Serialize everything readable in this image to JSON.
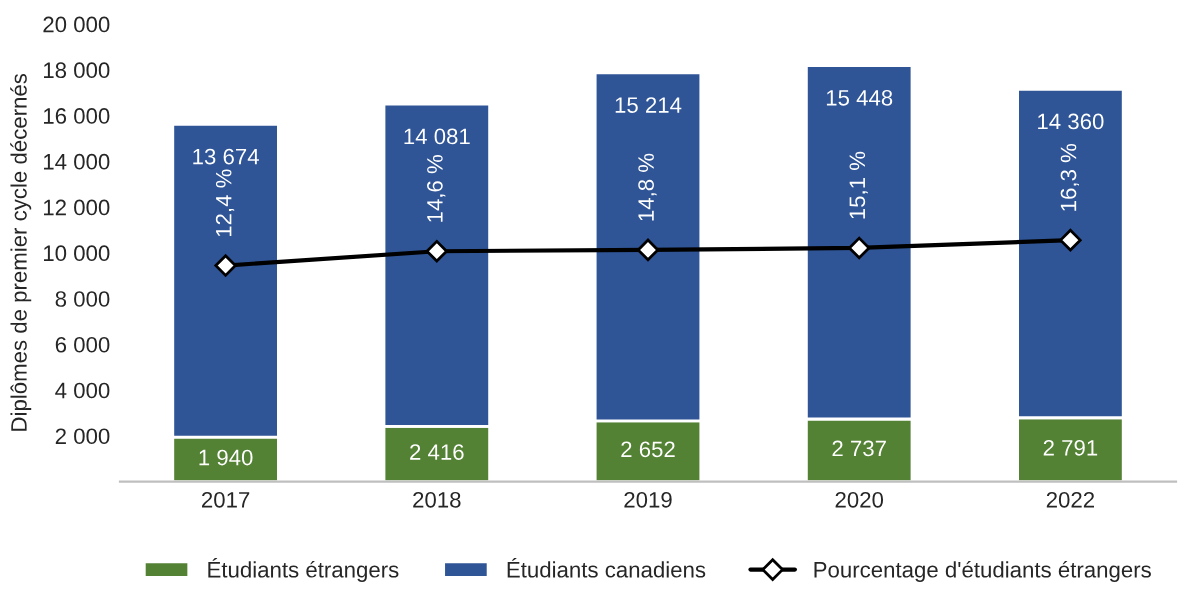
{
  "chart_data": {
    "type": "bar",
    "stacked": true,
    "ylabel": "Diplômes de premier cycle décernés",
    "categories": [
      "2017",
      "2018",
      "2019",
      "2020",
      "2022"
    ],
    "series": [
      {
        "name": "Étudiants étrangers",
        "color": "#548235",
        "values": [
          1940,
          2416,
          2652,
          2737,
          2791
        ],
        "value_labels": [
          "1 940",
          "2 416",
          "2 652",
          "2 737",
          "2 791"
        ]
      },
      {
        "name": "Étudiants canadiens",
        "color": "#2f5597",
        "values": [
          13674,
          14081,
          15214,
          15448,
          14360
        ],
        "value_labels": [
          "13 674",
          "14 081",
          "15 214",
          "15 448",
          "14 360"
        ]
      },
      {
        "name": "Pourcentage d'étudiants étrangers",
        "type": "line",
        "axis": "y2",
        "color": "#000000",
        "marker": "diamond",
        "values": [
          12.4,
          14.6,
          14.8,
          15.1,
          16.3
        ],
        "value_labels": [
          "12,4 %",
          "14,6 %",
          "14,8 %",
          "15,1 %",
          "16,3 %"
        ]
      }
    ],
    "ylim": [
      0,
      20000
    ],
    "yticks": [
      {
        "value": 0,
        "label": null
      },
      {
        "value": 2000,
        "label": "2 000"
      },
      {
        "value": 4000,
        "label": "4 000"
      },
      {
        "value": 6000,
        "label": "6 000"
      },
      {
        "value": 8000,
        "label": "8 000"
      },
      {
        "value": 10000,
        "label": "10 000"
      },
      {
        "value": 12000,
        "label": "12 000"
      },
      {
        "value": 14000,
        "label": "14 000"
      },
      {
        "value": 16000,
        "label": "16 000"
      },
      {
        "value": 18000,
        "label": "18 000"
      },
      {
        "value": 20000,
        "label": "20 000"
      }
    ],
    "legend": "bottom",
    "grid": false
  }
}
